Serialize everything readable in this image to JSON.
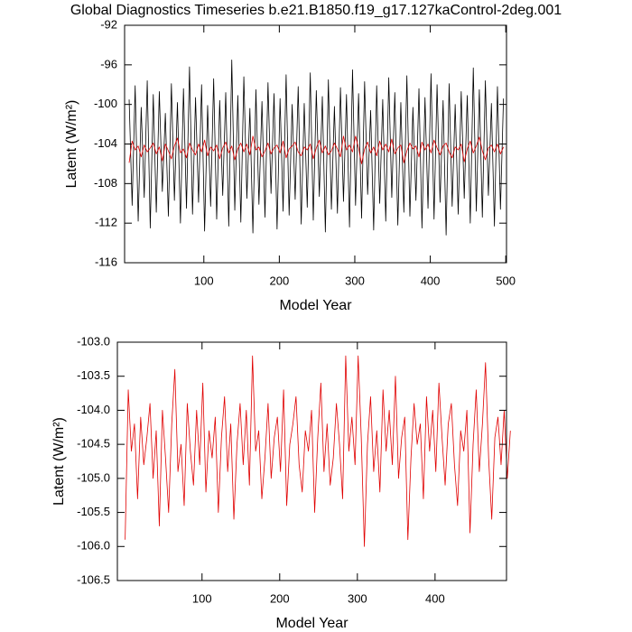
{
  "chart_data": [
    {
      "type": "line",
      "title": "Global Diagnostics Timeseries b.e21.B1850.f19_g17.127kaControl-2deg.001",
      "xlabel": "Model Year",
      "ylabel": "Latent (W/m²)",
      "xlim": [
        -5,
        501
      ],
      "xticks": [
        100,
        200,
        300,
        400,
        500
      ],
      "ylim": [
        -116,
        -92
      ],
      "yticks": [
        -116,
        -112,
        -108,
        -104,
        -100,
        -96,
        -92
      ],
      "x": [
        1,
        5,
        9,
        13,
        17,
        21,
        25,
        29,
        33,
        37,
        41,
        45,
        49,
        53,
        57,
        61,
        65,
        69,
        73,
        77,
        81,
        85,
        89,
        93,
        97,
        101,
        105,
        109,
        113,
        117,
        121,
        125,
        129,
        133,
        137,
        141,
        145,
        149,
        153,
        157,
        161,
        165,
        169,
        173,
        177,
        181,
        185,
        189,
        193,
        197,
        201,
        205,
        209,
        213,
        217,
        221,
        225,
        229,
        233,
        237,
        241,
        245,
        249,
        253,
        257,
        261,
        265,
        269,
        273,
        277,
        281,
        285,
        289,
        293,
        297,
        301,
        305,
        309,
        313,
        317,
        321,
        325,
        329,
        333,
        337,
        341,
        345,
        349,
        353,
        357,
        361,
        365,
        369,
        373,
        377,
        381,
        385,
        389,
        393,
        397,
        401,
        405,
        409,
        413,
        417,
        421,
        425,
        429,
        433,
        437,
        441,
        445,
        449,
        453,
        457,
        461,
        465,
        469,
        473,
        477,
        481,
        485,
        489,
        493,
        497
      ],
      "series": [
        {
          "color": "#000000",
          "values": [
            -99.5,
            -110.2,
            -98.1,
            -111.8,
            -100.3,
            -109.4,
            -97.6,
            -112.5,
            -99.0,
            -110.9,
            -98.7,
            -108.8,
            -100.9,
            -111.3,
            -97.9,
            -109.7,
            -99.8,
            -112.0,
            -98.4,
            -110.5,
            -96.2,
            -111.1,
            -99.3,
            -109.9,
            -98.0,
            -112.8,
            -100.1,
            -110.3,
            -97.4,
            -111.6,
            -99.6,
            -109.2,
            -98.8,
            -112.3,
            -95.5,
            -110.7,
            -99.1,
            -111.9,
            -97.2,
            -109.5,
            -100.4,
            -113.0,
            -98.5,
            -110.1,
            -99.7,
            -111.4,
            -97.8,
            -109.0,
            -98.9,
            -112.6,
            -99.4,
            -110.8,
            -97.0,
            -111.2,
            -100.0,
            -109.6,
            -98.2,
            -112.1,
            -99.9,
            -110.4,
            -96.8,
            -111.7,
            -98.6,
            -109.3,
            -99.2,
            -112.9,
            -97.5,
            -110.6,
            -100.2,
            -111.0,
            -98.3,
            -109.8,
            -99.0,
            -112.4,
            -96.5,
            -110.2,
            -98.9,
            -111.5,
            -97.7,
            -109.1,
            -100.6,
            -112.7,
            -98.1,
            -110.0,
            -99.5,
            -111.8,
            -97.3,
            -109.4,
            -98.8,
            -112.2,
            -99.8,
            -110.9,
            -97.1,
            -111.3,
            -100.3,
            -109.7,
            -98.4,
            -112.5,
            -99.3,
            -110.5,
            -96.9,
            -111.6,
            -98.0,
            -109.9,
            -99.6,
            -113.2,
            -97.9,
            -110.3,
            -100.0,
            -111.1,
            -98.7,
            -109.5,
            -99.1,
            -112.0,
            -96.3,
            -110.8,
            -98.5,
            -111.4,
            -97.6,
            -109.2,
            -99.9,
            -112.3,
            -98.2,
            -110.6,
            -99.4
          ]
        },
        {
          "color": "#e00000",
          "values": [
            -105.9,
            -103.7,
            -104.6,
            -104.2,
            -105.3,
            -104.1,
            -104.8,
            -104.4,
            -103.9,
            -105.0,
            -104.3,
            -105.7,
            -104.0,
            -104.7,
            -105.5,
            -104.2,
            -103.4,
            -104.9,
            -104.5,
            -105.4,
            -103.9,
            -104.6,
            -105.1,
            -104.0,
            -104.8,
            -103.6,
            -105.2,
            -104.3,
            -104.7,
            -104.1,
            -105.5,
            -104.4,
            -103.8,
            -104.9,
            -104.2,
            -105.6,
            -104.5,
            -103.9,
            -104.8,
            -104.0,
            -105.1,
            -103.2,
            -104.6,
            -104.3,
            -105.3,
            -104.7,
            -103.9,
            -105.0,
            -104.4,
            -104.1,
            -104.9,
            -103.7,
            -105.4,
            -104.5,
            -104.2,
            -103.8,
            -104.8,
            -105.2,
            -104.3,
            -104.6,
            -104.0,
            -105.5,
            -104.4,
            -103.6,
            -104.9,
            -104.2,
            -105.1,
            -104.7,
            -103.9,
            -104.5,
            -105.3,
            -103.2,
            -104.6,
            -104.1,
            -104.8,
            -103.2,
            -104.4,
            -106.0,
            -104.5,
            -103.8,
            -104.9,
            -104.3,
            -105.2,
            -103.7,
            -104.6,
            -104.0,
            -104.8,
            -103.5,
            -105.0,
            -104.4,
            -104.1,
            -105.9,
            -104.7,
            -103.9,
            -104.5,
            -104.2,
            -105.3,
            -103.8,
            -104.6,
            -104.0,
            -104.9,
            -103.6,
            -104.4,
            -105.1,
            -104.2,
            -103.9,
            -104.8,
            -105.4,
            -104.3,
            -104.6,
            -104.0,
            -105.8,
            -104.5,
            -103.7,
            -104.9,
            -104.2,
            -103.3,
            -104.7,
            -105.6,
            -104.4,
            -104.1,
            -104.8,
            -104.0,
            -105.0,
            -104.3
          ]
        }
      ]
    },
    {
      "type": "line",
      "xlabel": "Model Year",
      "ylabel": "Latent (W/m²)",
      "xlim": [
        -9,
        492
      ],
      "xticks": [
        100,
        200,
        300,
        400
      ],
      "ylim": [
        -106.5,
        -103.0
      ],
      "yticks": [
        {
          "value": -106.5,
          "label": "-106.5"
        },
        {
          "value": -106.0,
          "label": "-106.0"
        },
        {
          "value": -105.5,
          "label": "-105.5"
        },
        {
          "value": -105.0,
          "label": "-105.0"
        },
        {
          "value": -104.5,
          "label": "-104.5"
        },
        {
          "value": -104.0,
          "label": "-104.0"
        },
        {
          "value": -103.5,
          "label": "-103.5"
        },
        {
          "value": -103.0,
          "label": "-103.0"
        }
      ],
      "x": [
        1,
        5,
        9,
        13,
        17,
        21,
        25,
        29,
        33,
        37,
        41,
        45,
        49,
        53,
        57,
        61,
        65,
        69,
        73,
        77,
        81,
        85,
        89,
        93,
        97,
        101,
        105,
        109,
        113,
        117,
        121,
        125,
        129,
        133,
        137,
        141,
        145,
        149,
        153,
        157,
        161,
        165,
        169,
        173,
        177,
        181,
        185,
        189,
        193,
        197,
        201,
        205,
        209,
        213,
        217,
        221,
        225,
        229,
        233,
        237,
        241,
        245,
        249,
        253,
        257,
        261,
        265,
        269,
        273,
        277,
        281,
        285,
        289,
        293,
        297,
        301,
        305,
        309,
        313,
        317,
        321,
        325,
        329,
        333,
        337,
        341,
        345,
        349,
        353,
        357,
        361,
        365,
        369,
        373,
        377,
        381,
        385,
        389,
        393,
        397,
        401,
        405,
        409,
        413,
        417,
        421,
        425,
        429,
        433,
        437,
        441,
        445,
        449,
        453,
        457,
        461,
        465,
        469,
        473,
        477,
        481,
        485,
        489,
        493,
        497
      ],
      "series": [
        {
          "color": "#e00000",
          "values": [
            -105.9,
            -103.7,
            -104.6,
            -104.2,
            -105.3,
            -104.1,
            -104.8,
            -104.4,
            -103.9,
            -105.0,
            -104.3,
            -105.7,
            -104.0,
            -104.7,
            -105.5,
            -104.2,
            -103.4,
            -104.9,
            -104.5,
            -105.4,
            -103.9,
            -104.6,
            -105.1,
            -104.0,
            -104.8,
            -103.6,
            -105.2,
            -104.3,
            -104.7,
            -104.1,
            -105.5,
            -104.4,
            -103.8,
            -104.9,
            -104.2,
            -105.6,
            -104.5,
            -103.9,
            -104.8,
            -104.0,
            -105.1,
            -103.2,
            -104.6,
            -104.3,
            -105.3,
            -104.7,
            -103.9,
            -105.0,
            -104.4,
            -104.1,
            -104.9,
            -103.7,
            -105.4,
            -104.5,
            -104.2,
            -103.8,
            -104.8,
            -105.2,
            -104.3,
            -104.6,
            -104.0,
            -105.5,
            -104.4,
            -103.6,
            -104.9,
            -104.2,
            -105.1,
            -104.7,
            -103.9,
            -104.5,
            -105.3,
            -103.2,
            -104.6,
            -104.1,
            -104.8,
            -103.2,
            -104.4,
            -106.0,
            -104.5,
            -103.8,
            -104.9,
            -104.3,
            -105.2,
            -103.7,
            -104.6,
            -104.0,
            -104.8,
            -103.5,
            -105.0,
            -104.4,
            -104.1,
            -105.9,
            -104.7,
            -103.9,
            -104.5,
            -104.2,
            -105.3,
            -103.8,
            -104.6,
            -104.0,
            -104.9,
            -103.6,
            -104.4,
            -105.1,
            -104.2,
            -103.9,
            -104.8,
            -105.4,
            -104.3,
            -104.6,
            -104.0,
            -105.8,
            -104.5,
            -103.7,
            -104.9,
            -104.2,
            -103.3,
            -104.7,
            -105.6,
            -104.4,
            -104.1,
            -104.8,
            -104.0,
            -105.0,
            -104.3
          ]
        }
      ]
    }
  ]
}
